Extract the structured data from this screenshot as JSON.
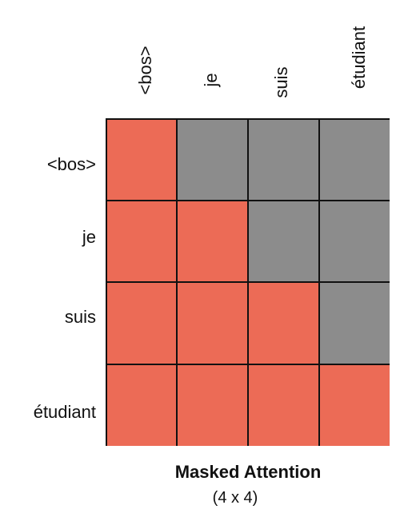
{
  "tokens": [
    "<bos>",
    "je",
    "suis",
    "étudiant"
  ],
  "mask": [
    [
      1,
      0,
      0,
      0
    ],
    [
      1,
      1,
      0,
      0
    ],
    [
      1,
      1,
      1,
      0
    ],
    [
      1,
      1,
      1,
      1
    ]
  ],
  "colors": {
    "attend": "#ec6b56",
    "masked": "#8c8c8c"
  },
  "title": "Masked Attention",
  "subtitle": "(4 x 4)"
}
